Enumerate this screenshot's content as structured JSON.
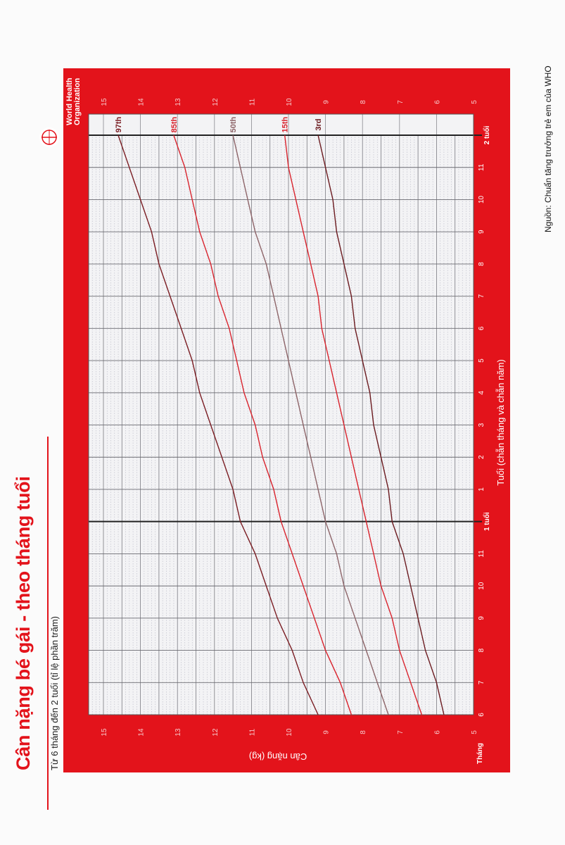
{
  "header": {
    "title": "Cân nặng bé gái - theo tháng tuổi",
    "subtitle": "Từ 6 tháng đến 2 tuổi (tỉ lệ phần trăm)"
  },
  "logo": {
    "line1": "World Health",
    "line2": "Organization"
  },
  "source": "Nguồn: Chuẩn tăng trưởng trẻ em của WHO",
  "colors": {
    "panel": "#e3131b",
    "plot_bg": "#f3f3f5",
    "dark_line": "#7a1c22",
    "red_line": "#d9232d",
    "median_line": "#8d6468"
  },
  "chart_data": {
    "type": "line",
    "title": "",
    "xlabel": "Tuổi (chẵn tháng và chẵn năm)",
    "ylabel": "Cân nặng (kg)",
    "x_unit_label": "Tháng",
    "x": [
      6,
      7,
      8,
      9,
      10,
      11,
      12,
      13,
      14,
      15,
      16,
      17,
      18,
      19,
      20,
      21,
      22,
      23,
      24
    ],
    "x_tick_labels": [
      "6",
      "7",
      "8",
      "9",
      "10",
      "11",
      "1 tuổi",
      "1",
      "2",
      "3",
      "4",
      "5",
      "6",
      "7",
      "8",
      "9",
      "10",
      "11",
      "2 tuổi"
    ],
    "xlim": [
      6,
      24
    ],
    "ylim": [
      5,
      15.4
    ],
    "y_ticks": [
      "5",
      "6",
      "7",
      "8",
      "9",
      "10",
      "11",
      "12",
      "13",
      "14",
      "15"
    ],
    "grid": true,
    "series": [
      {
        "name": "97th",
        "color": "#7a1c22",
        "values": [
          9.2,
          9.6,
          9.9,
          10.3,
          10.6,
          10.9,
          11.3,
          11.5,
          11.8,
          12.1,
          12.4,
          12.6,
          12.9,
          13.2,
          13.5,
          13.7,
          14.0,
          14.3,
          14.6
        ]
      },
      {
        "name": "85th",
        "color": "#d9232d",
        "values": [
          8.3,
          8.6,
          9.0,
          9.3,
          9.6,
          9.9,
          10.2,
          10.4,
          10.7,
          10.9,
          11.2,
          11.4,
          11.6,
          11.9,
          12.1,
          12.4,
          12.6,
          12.8,
          13.1
        ]
      },
      {
        "name": "50th",
        "color": "#8d6468",
        "values": [
          7.3,
          7.6,
          7.9,
          8.2,
          8.5,
          8.7,
          9.0,
          9.2,
          9.4,
          9.6,
          9.8,
          10.0,
          10.2,
          10.4,
          10.6,
          10.9,
          11.1,
          11.3,
          11.5
        ]
      },
      {
        "name": "15th",
        "color": "#d9232d",
        "values": [
          6.4,
          6.7,
          7.0,
          7.2,
          7.5,
          7.7,
          7.9,
          8.1,
          8.3,
          8.5,
          8.7,
          8.9,
          9.1,
          9.2,
          9.4,
          9.6,
          9.8,
          10.0,
          10.1
        ]
      },
      {
        "name": "3rd",
        "color": "#6b1a1f",
        "values": [
          5.8,
          6.0,
          6.3,
          6.5,
          6.7,
          6.9,
          7.2,
          7.3,
          7.5,
          7.7,
          7.8,
          8.0,
          8.2,
          8.3,
          8.5,
          8.7,
          8.8,
          9.0,
          9.2
        ]
      }
    ]
  }
}
